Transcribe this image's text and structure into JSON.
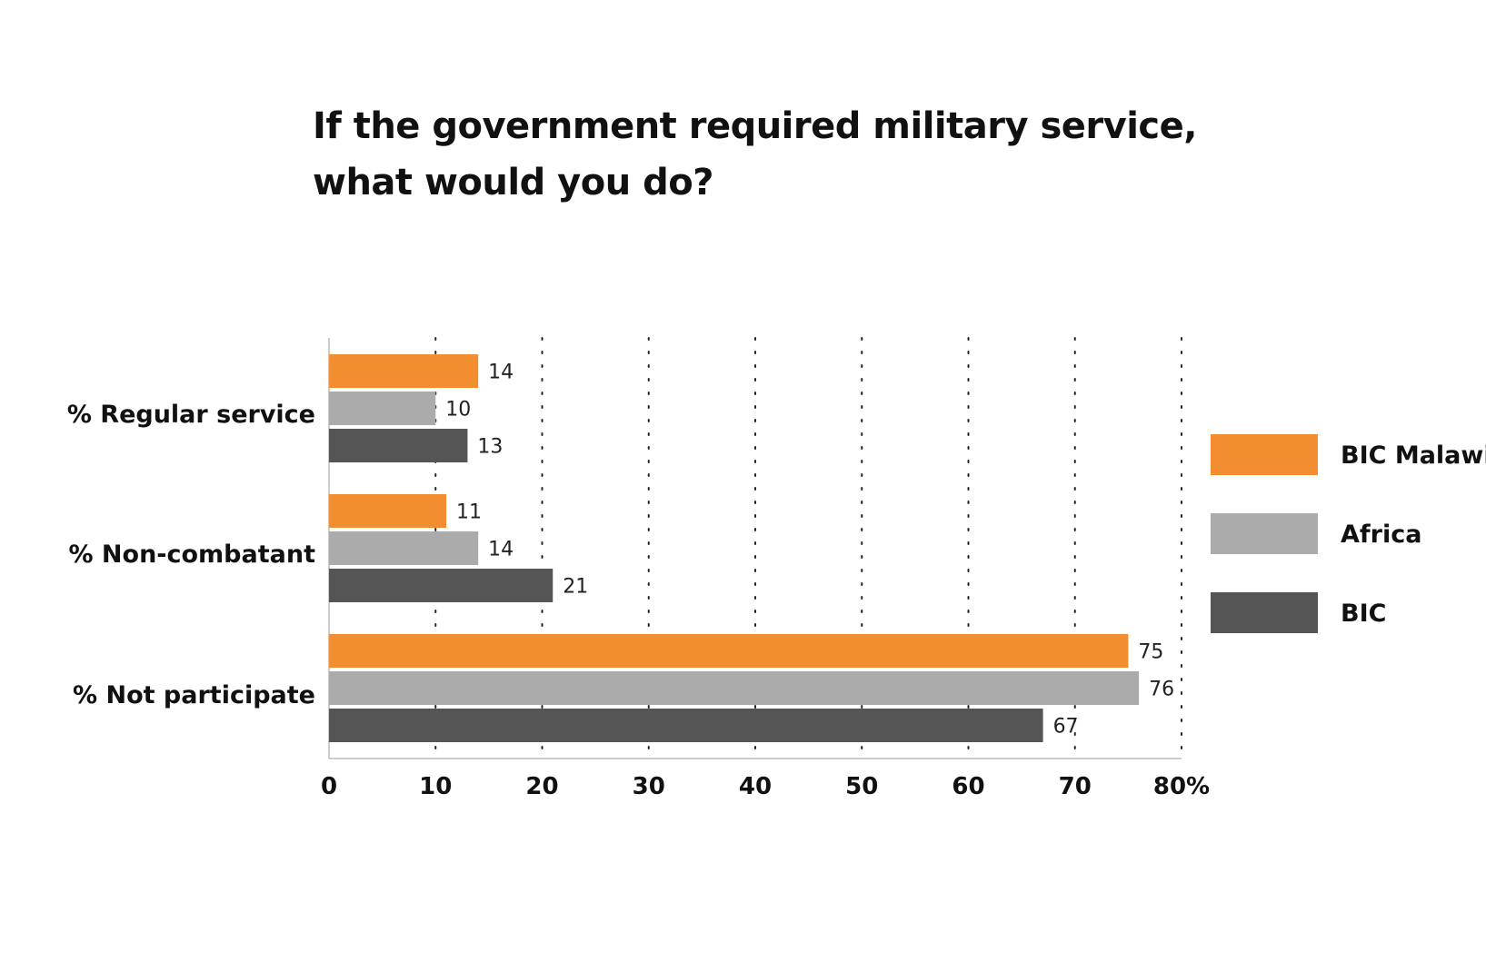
{
  "chart_data": {
    "type": "bar",
    "orientation": "horizontal",
    "title": [
      "If the government required military service,",
      "what would you do?"
    ],
    "categories": [
      "% Regular service",
      "% Non-combatant",
      "% Not participate"
    ],
    "series": [
      {
        "name": "BIC Malawi",
        "color": "#F28E2F",
        "values": [
          14,
          11,
          75
        ]
      },
      {
        "name": "Africa",
        "color": "#ABABAB",
        "values": [
          10,
          14,
          76
        ]
      },
      {
        "name": "BIC",
        "color": "#555555",
        "values": [
          13,
          21,
          67
        ]
      }
    ],
    "x_ticks": [
      "0",
      "10",
      "20",
      "30",
      "40",
      "50",
      "60",
      "70",
      "80%"
    ],
    "xlim": [
      0,
      80
    ],
    "grid": "vertical dotted",
    "legend_position": "right"
  }
}
